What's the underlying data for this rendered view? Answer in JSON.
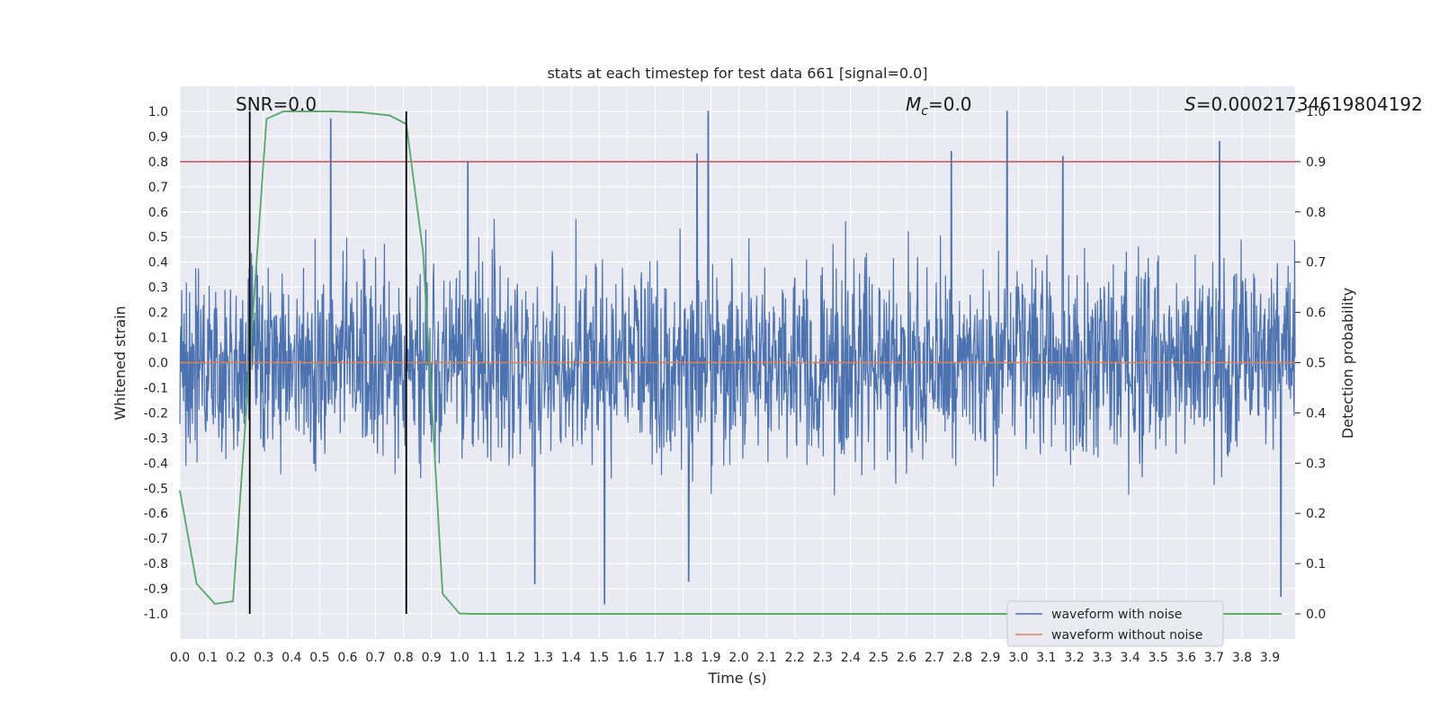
{
  "chart_data": {
    "type": "line",
    "title": "stats at each timestep for test data 661 [signal=0.0]",
    "xlabel": "Time (s)",
    "ylabel": "Whitened strain",
    "ylabel_right": "Detection probability",
    "xlim": [
      0.0,
      3.99
    ],
    "ylim": [
      -1.1,
      1.1
    ],
    "ylim_right": [
      -0.05,
      1.05
    ],
    "x_ticks": [
      "0.0",
      "0.1",
      "0.2",
      "0.3",
      "0.4",
      "0.5",
      "0.6",
      "0.7",
      "0.8",
      "0.9",
      "1.0",
      "1.1",
      "1.2",
      "1.3",
      "1.4",
      "1.5",
      "1.6",
      "1.7",
      "1.8",
      "1.9",
      "2.0",
      "2.1",
      "2.2",
      "2.3",
      "2.4",
      "2.5",
      "2.6",
      "2.7",
      "2.8",
      "2.9",
      "3.0",
      "3.1",
      "3.2",
      "3.3",
      "3.4",
      "3.5",
      "3.6",
      "3.7",
      "3.8",
      "3.9"
    ],
    "y_ticks": [
      "1.0",
      "0.9",
      "0.8",
      "0.7",
      "0.6",
      "0.5",
      "0.4",
      "0.3",
      "0.2",
      "0.1",
      "0.0",
      "-0.1",
      "-0.2",
      "-0.3",
      "-0.4",
      "-0.5",
      "-0.6",
      "-0.7",
      "-0.8",
      "-0.9",
      "-1.0"
    ],
    "y_ticks_right": [
      "1.0",
      "0.9",
      "0.8",
      "0.7",
      "0.6",
      "0.5",
      "0.4",
      "0.3",
      "0.2",
      "0.1",
      "0.0"
    ],
    "grid": true,
    "legend_position": "bottom-right",
    "annotations": {
      "snr": "SNR=0.0",
      "mc_symbol": "M",
      "mc_sub": "c",
      "mc_value": "=0.0",
      "s_symbol": "S",
      "s_value": "=0.00021734619804192"
    },
    "series": [
      {
        "name": "waveform with noise",
        "color": "#4c72b0",
        "description_values": "dense noise approximately in [-0.95, 1.0]",
        "amplitude": 0.36,
        "peaks": [
          [
            0.54,
            0.97
          ],
          [
            1.89,
            1.0
          ],
          [
            2.96,
            1.0
          ],
          [
            3.72,
            0.88
          ],
          [
            1.03,
            0.8
          ],
          [
            1.85,
            0.83
          ],
          [
            3.16,
            0.82
          ],
          [
            2.76,
            0.84
          ],
          [
            1.52,
            -0.96
          ],
          [
            1.82,
            -0.87
          ],
          [
            3.94,
            -0.93
          ],
          [
            1.27,
            -0.88
          ]
        ]
      },
      {
        "name": "waveform without noise",
        "color": "#dd8452",
        "values_constant": 0.0
      },
      {
        "name": "",
        "axis": "right",
        "color": "#55a868",
        "x": [
          0.0,
          0.06,
          0.125,
          0.19,
          0.31,
          0.37,
          0.45,
          0.55,
          0.65,
          0.75,
          0.81,
          0.87,
          0.94,
          1.0,
          1.05,
          1.5,
          2.0,
          2.5,
          3.0,
          3.5,
          3.94
        ],
        "values": [
          0.245,
          0.06,
          0.02,
          0.025,
          0.985,
          1.0,
          1.0,
          1.0,
          0.998,
          0.992,
          0.975,
          0.72,
          0.04,
          0.001,
          0.0,
          0.0,
          0.0,
          0.0,
          0.0,
          0.0,
          0.0
        ]
      }
    ],
    "threshold_line": {
      "axis": "right",
      "value": 0.9,
      "color": "#c44e52"
    },
    "vertical_lines": [
      0.25,
      0.81
    ]
  }
}
